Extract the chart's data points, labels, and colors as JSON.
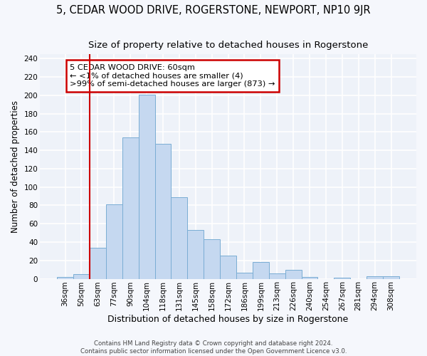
{
  "title": "5, CEDAR WOOD DRIVE, ROGERSTONE, NEWPORT, NP10 9JR",
  "subtitle": "Size of property relative to detached houses in Rogerstone",
  "xlabel": "Distribution of detached houses by size in Rogerstone",
  "ylabel": "Number of detached properties",
  "categories": [
    "36sqm",
    "50sqm",
    "63sqm",
    "77sqm",
    "90sqm",
    "104sqm",
    "118sqm",
    "131sqm",
    "145sqm",
    "158sqm",
    "172sqm",
    "186sqm",
    "199sqm",
    "213sqm",
    "226sqm",
    "240sqm",
    "254sqm",
    "267sqm",
    "281sqm",
    "294sqm",
    "308sqm"
  ],
  "values": [
    2,
    5,
    34,
    81,
    154,
    201,
    147,
    89,
    53,
    43,
    25,
    7,
    18,
    6,
    10,
    2,
    0,
    1,
    0,
    3,
    3
  ],
  "bar_color": "#c5d8f0",
  "bar_edge_color": "#7aadd4",
  "highlight_line_index": 2,
  "highlight_line_color": "#cc0000",
  "annotation_text": "5 CEDAR WOOD DRIVE: 60sqm\n← <1% of detached houses are smaller (4)\n>99% of semi-detached houses are larger (873) →",
  "annotation_box_color": "#ffffff",
  "annotation_box_edge_color": "#cc0000",
  "ylim": [
    0,
    245
  ],
  "yticks": [
    0,
    20,
    40,
    60,
    80,
    100,
    120,
    140,
    160,
    180,
    200,
    220,
    240
  ],
  "footer1": "Contains HM Land Registry data © Crown copyright and database right 2024.",
  "footer2": "Contains public sector information licensed under the Open Government Licence v3.0.",
  "bg_color": "#eef2f9",
  "grid_color": "#ffffff",
  "fig_bg_color": "#f5f7fc",
  "title_fontsize": 10.5,
  "subtitle_fontsize": 9.5,
  "tick_fontsize": 7.5,
  "ylabel_fontsize": 8.5,
  "xlabel_fontsize": 9
}
